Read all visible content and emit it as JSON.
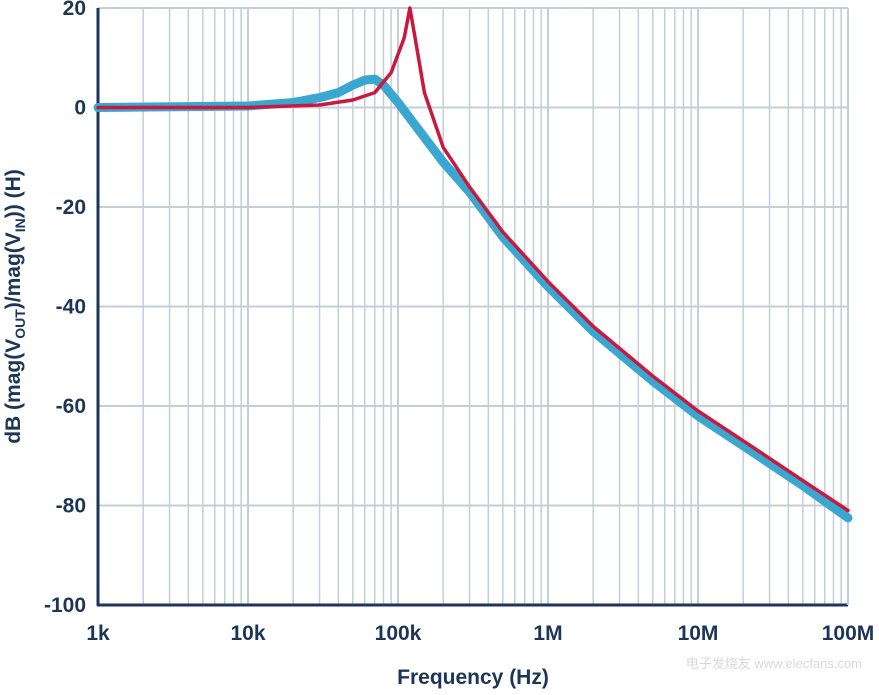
{
  "chart_data": {
    "type": "line",
    "xlabel": "Frequency (Hz)",
    "ylabel": [
      "dB (mag(V",
      "OUT",
      ")/mag(V",
      "IN",
      "))  (H)"
    ],
    "xscale": "log",
    "grid": true,
    "minor_grid": true,
    "xlim": [
      1000,
      100000000
    ],
    "ylim": [
      -100,
      20
    ],
    "xticks": [
      {
        "value": 1000,
        "label": "1k"
      },
      {
        "value": 10000,
        "label": "10k"
      },
      {
        "value": 100000,
        "label": "100k"
      },
      {
        "value": 1000000,
        "label": "1M"
      },
      {
        "value": 10000000,
        "label": "10M"
      },
      {
        "value": 100000000,
        "label": "100M"
      }
    ],
    "yticks": [
      -100,
      -80,
      -60,
      -40,
      -20,
      0,
      20
    ],
    "series": [
      {
        "color": "#3aa7d1",
        "width": 9,
        "x": [
          1000,
          10000,
          20000,
          30000,
          40000,
          50000,
          60000,
          70000,
          80000,
          100000,
          150000,
          200000,
          300000,
          500000,
          1000000,
          2000000,
          5000000,
          10000000,
          20000000,
          50000000,
          100000000
        ],
        "values": [
          0,
          0.3,
          1,
          2,
          3,
          4.5,
          5.5,
          5.7,
          4.5,
          1,
          -6,
          -11,
          -17,
          -26,
          -36,
          -45,
          -55,
          -62,
          -68,
          -76,
          -82.5
        ]
      },
      {
        "color": "#c8193f",
        "width": 3.5,
        "x": [
          1000,
          10000,
          30000,
          50000,
          70000,
          90000,
          110000,
          120000,
          130000,
          150000,
          200000,
          300000,
          500000,
          1000000,
          2000000,
          5000000,
          10000000,
          20000000,
          50000000,
          100000000
        ],
        "values": [
          0,
          0,
          0.5,
          1.5,
          3,
          7,
          14,
          20,
          14,
          3,
          -8,
          -16,
          -25,
          -35,
          -44,
          -54,
          -61,
          -67,
          -75,
          -81
        ]
      }
    ],
    "watermark": "电子发烧友 www.elecfans.com"
  }
}
